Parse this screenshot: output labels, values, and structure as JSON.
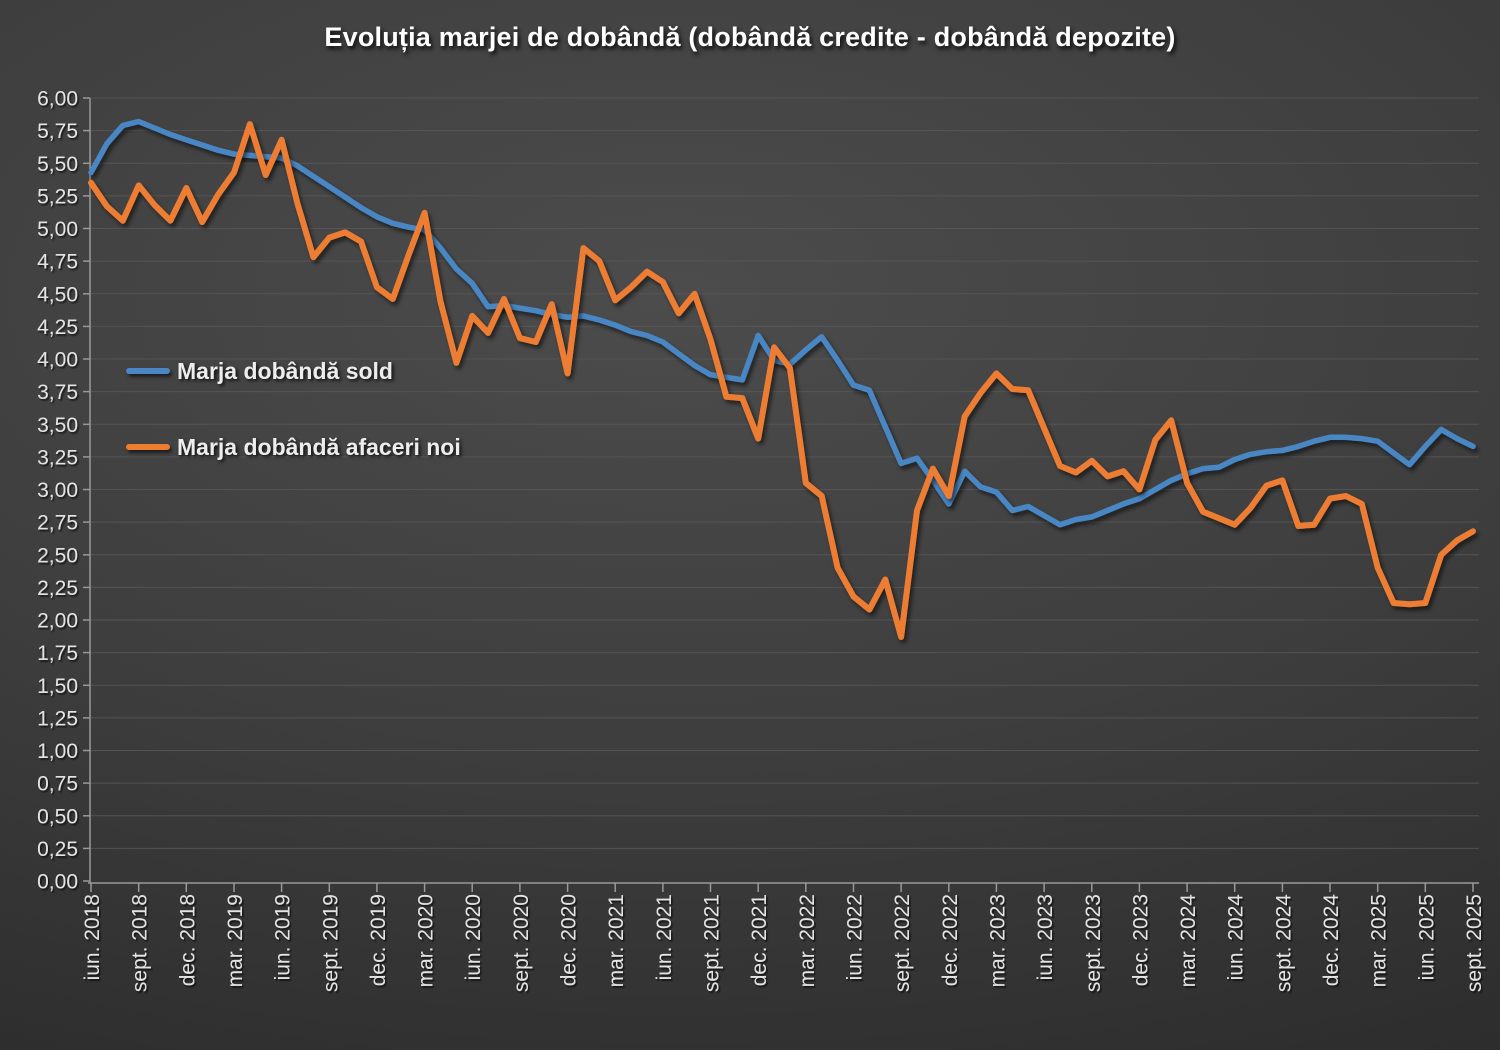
{
  "chart_data": {
    "type": "line",
    "title": "Evoluția marjei de dobândă (dobândă credite - dobândă depozite)",
    "grid": "horizontal",
    "legend_position": "inside-left",
    "y_axis": {
      "min": 0,
      "max": 6,
      "step": 0.25,
      "decimal_separator": "comma"
    },
    "x_tick_labels": [
      "iun. 2018",
      "sept. 2018",
      "dec. 2018",
      "mar. 2019",
      "iun. 2019",
      "sept. 2019",
      "dec. 2019",
      "mar. 2020",
      "iun. 2020",
      "sept. 2020",
      "dec. 2020",
      "mar. 2021",
      "iun. 2021",
      "sept. 2021",
      "dec. 2021",
      "mar. 2022",
      "iun. 2022",
      "sept. 2022",
      "dec. 2022",
      "mar. 2023",
      "iun. 2023",
      "sept. 2023",
      "dec. 2023",
      "mar. 2024",
      "iun. 2024",
      "sept. 2024",
      "dec. 2024",
      "mar. 2025",
      "iun. 2025",
      "sept. 2025"
    ],
    "points_per_tick": 3,
    "series": [
      {
        "name": "Marja dobândă sold",
        "color": "#4a86c4",
        "values": [
          5.43,
          5.65,
          5.79,
          5.82,
          5.77,
          5.72,
          5.68,
          5.64,
          5.6,
          5.57,
          5.56,
          5.55,
          5.54,
          5.48,
          5.4,
          5.32,
          5.24,
          5.16,
          5.09,
          5.04,
          5.01,
          4.99,
          4.85,
          4.69,
          4.58,
          4.4,
          4.41,
          4.39,
          4.37,
          4.34,
          4.32,
          4.33,
          4.3,
          4.26,
          4.21,
          4.18,
          4.13,
          4.04,
          3.95,
          3.88,
          3.86,
          3.84,
          4.18,
          3.99,
          3.96,
          4.07,
          4.17,
          3.99,
          3.8,
          3.76,
          3.48,
          3.2,
          3.24,
          3.07,
          2.89,
          3.14,
          3.02,
          2.98,
          2.84,
          2.87,
          2.8,
          2.73,
          2.77,
          2.79,
          2.84,
          2.89,
          2.93,
          3.0,
          3.07,
          3.12,
          3.16,
          3.17,
          3.23,
          3.27,
          3.29,
          3.3,
          3.33,
          3.37,
          3.4,
          3.4,
          3.39,
          3.37,
          3.28,
          3.19,
          3.33,
          3.46,
          3.39,
          3.33
        ]
      },
      {
        "name": "Marja dobândă afaceri noi",
        "color": "#ed7d31",
        "values": [
          5.35,
          5.17,
          5.06,
          5.33,
          5.18,
          5.06,
          5.31,
          5.05,
          5.26,
          5.43,
          5.8,
          5.41,
          5.68,
          5.19,
          4.78,
          4.93,
          4.97,
          4.9,
          4.55,
          4.46,
          4.8,
          5.12,
          4.44,
          3.97,
          4.33,
          4.2,
          4.46,
          4.16,
          4.13,
          4.42,
          3.89,
          4.85,
          4.75,
          4.45,
          4.55,
          4.67,
          4.59,
          4.35,
          4.5,
          4.15,
          3.71,
          3.7,
          3.39,
          4.09,
          3.93,
          3.05,
          2.95,
          2.4,
          2.18,
          2.08,
          2.31,
          1.87,
          2.84,
          3.16,
          2.95,
          3.56,
          3.74,
          3.89,
          3.77,
          3.76,
          3.47,
          3.18,
          3.13,
          3.22,
          3.1,
          3.14,
          3.0,
          3.38,
          3.53,
          3.05,
          2.83,
          2.78,
          2.73,
          2.86,
          3.03,
          3.07,
          2.72,
          2.73,
          2.93,
          2.95,
          2.89,
          2.4,
          2.13,
          2.12,
          2.13,
          2.5,
          2.61,
          2.68
        ]
      }
    ],
    "style": {
      "background_top": "#4c4c4c",
      "background_bottom": "#272727",
      "gridline_color": "#585858",
      "axis_color": "#999999",
      "label_color": "#e3e3e3",
      "title_color": "#ffffff"
    }
  }
}
